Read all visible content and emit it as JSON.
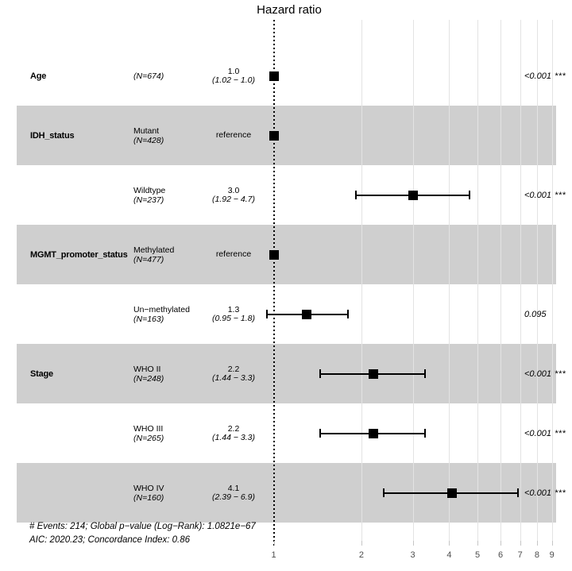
{
  "chart_data": {
    "type": "forest",
    "title": "Hazard ratio",
    "axis": {
      "scale": "log10",
      "ticks": [
        1,
        2,
        3,
        4,
        5,
        6,
        7,
        8,
        9
      ],
      "reference_line_at": 1,
      "grid": "vertical-only"
    },
    "rows": [
      {
        "term": "Age",
        "level": "",
        "n": "(N=674)",
        "estimate": "1.0",
        "ci": "(1.02 − 1.0)",
        "hr": 1.0,
        "lo": 1.02,
        "hi": 1.0,
        "p": "<0.001",
        "stars": "***",
        "stripe": false,
        "reference": false
      },
      {
        "term": "IDH_status",
        "level": "Mutant",
        "n": "(N=428)",
        "estimate": "reference",
        "ci": "",
        "hr": 1.0,
        "lo": null,
        "hi": null,
        "p": "",
        "stars": "",
        "stripe": true,
        "reference": true
      },
      {
        "term": "",
        "level": "Wildtype",
        "n": "(N=237)",
        "estimate": "3.0",
        "ci": "(1.92 − 4.7)",
        "hr": 3.0,
        "lo": 1.92,
        "hi": 4.7,
        "p": "<0.001",
        "stars": "***",
        "stripe": false,
        "reference": false
      },
      {
        "term": "MGMT_promoter_status",
        "level": "Methylated",
        "n": "(N=477)",
        "estimate": "reference",
        "ci": "",
        "hr": 1.0,
        "lo": null,
        "hi": null,
        "p": "",
        "stars": "",
        "stripe": true,
        "reference": true
      },
      {
        "term": "",
        "level": "Un−methylated",
        "n": "(N=163)",
        "estimate": "1.3",
        "ci": "(0.95 − 1.8)",
        "hr": 1.3,
        "lo": 0.95,
        "hi": 1.8,
        "p": "0.095",
        "stars": "",
        "stripe": false,
        "reference": false
      },
      {
        "term": "Stage",
        "level": "WHO II",
        "n": "(N=248)",
        "estimate": "2.2",
        "ci": "(1.44 − 3.3)",
        "hr": 2.2,
        "lo": 1.44,
        "hi": 3.3,
        "p": "<0.001",
        "stars": "***",
        "stripe": true,
        "reference": false
      },
      {
        "term": "",
        "level": "WHO III",
        "n": "(N=265)",
        "estimate": "2.2",
        "ci": "(1.44 − 3.3)",
        "hr": 2.2,
        "lo": 1.44,
        "hi": 3.3,
        "p": "<0.001",
        "stars": "***",
        "stripe": false,
        "reference": false
      },
      {
        "term": "",
        "level": "WHO IV",
        "n": "(N=160)",
        "estimate": "4.1",
        "ci": "(2.39 − 6.9)",
        "hr": 4.1,
        "lo": 2.39,
        "hi": 6.9,
        "p": "<0.001",
        "stars": "***",
        "stripe": true,
        "reference": false
      }
    ],
    "footer": [
      "# Events: 214; Global p−value (Log−Rank): 1.0821e−67",
      "AIC: 2020.23; Concordance Index: 0.86"
    ],
    "colors": {
      "stripe": "#cfcfcf",
      "gridline": "#e3e3e3",
      "marker": "#000000",
      "tick_label": "#4d4d4d"
    }
  }
}
